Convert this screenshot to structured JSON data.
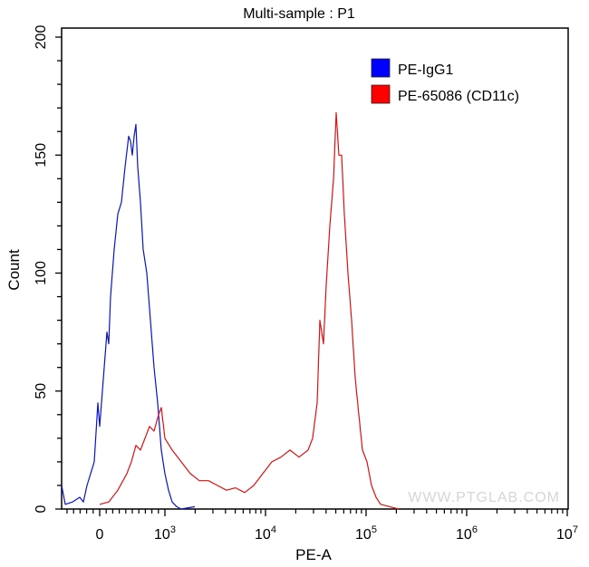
{
  "chart_data": {
    "type": "line",
    "title": "Multi-sample : P1",
    "xlabel": "PE-A",
    "ylabel": "Count",
    "ylim": [
      0,
      200
    ],
    "yticks": [
      "0",
      "50",
      "100",
      "150",
      "200"
    ],
    "xscale": "biexponential",
    "xticks": [
      {
        "value": 0,
        "label": "0",
        "exp": ""
      },
      {
        "value": 1000,
        "label": "10",
        "exp": "3"
      },
      {
        "value": 10000,
        "label": "10",
        "exp": "4"
      },
      {
        "value": 100000,
        "label": "10",
        "exp": "5"
      },
      {
        "value": 1000000,
        "label": "10",
        "exp": "6"
      },
      {
        "value": 10000000,
        "label": "10",
        "exp": "7"
      }
    ],
    "grid": false,
    "legend_position": "top-right",
    "watermark": "WWW.PTGLAB.COM",
    "series": [
      {
        "name": "PE-IgG1",
        "color": "#0000ff",
        "line_color": "#0a14c8",
        "x": [
          -583,
          -528,
          -417,
          -306,
          -250,
          -194,
          -139,
          -83,
          -28,
          0,
          56,
          111,
          139,
          167,
          222,
          278,
          333,
          389,
          444,
          472,
          500,
          528,
          556,
          583,
          625,
          667,
          722,
          778,
          833,
          889,
          944,
          1000,
          1087,
          1181,
          1310,
          1452,
          1982
        ],
        "y": [
          10,
          2,
          3,
          5,
          3,
          10,
          15,
          20,
          45,
          35,
          55,
          75,
          70,
          90,
          110,
          125,
          130,
          145,
          158,
          156,
          150,
          158,
          163,
          145,
          130,
          110,
          100,
          80,
          60,
          45,
          25,
          15,
          8,
          3,
          1,
          0,
          1
        ]
      },
      {
        "name": "PE-65086 (CD11c)",
        "color": "#ff0000",
        "line_color": "#e01010",
        "x": [
          0,
          139,
          278,
          417,
          486,
          556,
          625,
          694,
          764,
          833,
          903,
          944,
          1000,
          1181,
          1452,
          1787,
          2198,
          2706,
          3330,
          4098,
          5043,
          6206,
          7637,
          9398,
          11565,
          14230,
          17510,
          21550,
          26520,
          29400,
          32630,
          34740,
          36220,
          37750,
          40160,
          43650,
          47440,
          50470,
          53700,
          57130,
          60780,
          66070,
          71810,
          78050,
          84710,
          92040,
          102100,
          113200,
          125600,
          139300,
          171400,
          210900
        ],
        "y": [
          2,
          3,
          8,
          15,
          20,
          27,
          25,
          30,
          35,
          33,
          40,
          43,
          30,
          25,
          20,
          15,
          12,
          12,
          10,
          8,
          9,
          7,
          10,
          15,
          20,
          22,
          25,
          22,
          25,
          30,
          45,
          80,
          75,
          70,
          95,
          120,
          140,
          168,
          150,
          150,
          125,
          100,
          80,
          55,
          40,
          25,
          20,
          10,
          5,
          2,
          1,
          0
        ]
      }
    ]
  }
}
